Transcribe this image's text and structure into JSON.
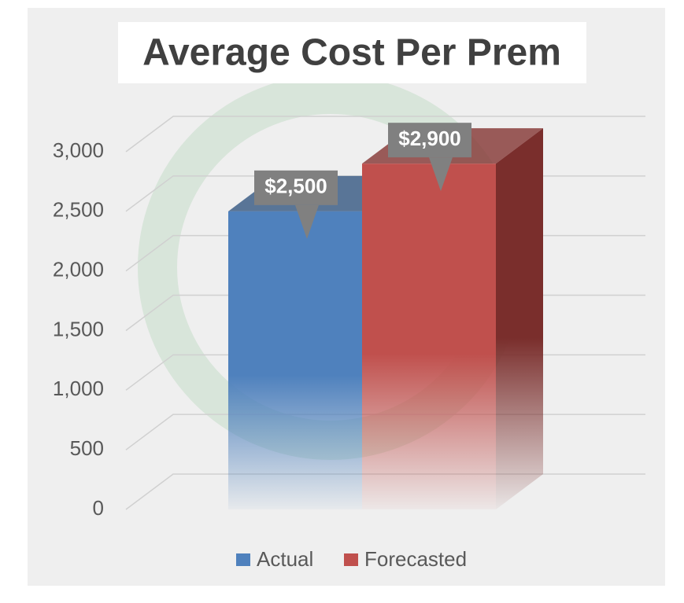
{
  "chart_data": {
    "type": "bar3d",
    "title": "Average Cost Per Prem",
    "categories": [
      null
    ],
    "series": [
      {
        "name": "Actual",
        "color": "#4f81bd",
        "values": [
          2500
        ],
        "value_labels": [
          "$2,500"
        ]
      },
      {
        "name": "Forecasted",
        "color": "#c0504d",
        "values": [
          2900
        ],
        "value_labels": [
          "$2,900"
        ]
      }
    ],
    "ylim": [
      0,
      3000
    ],
    "yticks": [
      0,
      500,
      {
        "value": 1000,
        "label": "1,000"
      },
      {
        "value": 1500,
        "label": "1,500"
      },
      {
        "value": 2000,
        "label": "2,000"
      },
      {
        "value": 2500,
        "label": "2,500"
      },
      {
        "value": 3000,
        "label": "3,000"
      }
    ],
    "grid": true
  }
}
